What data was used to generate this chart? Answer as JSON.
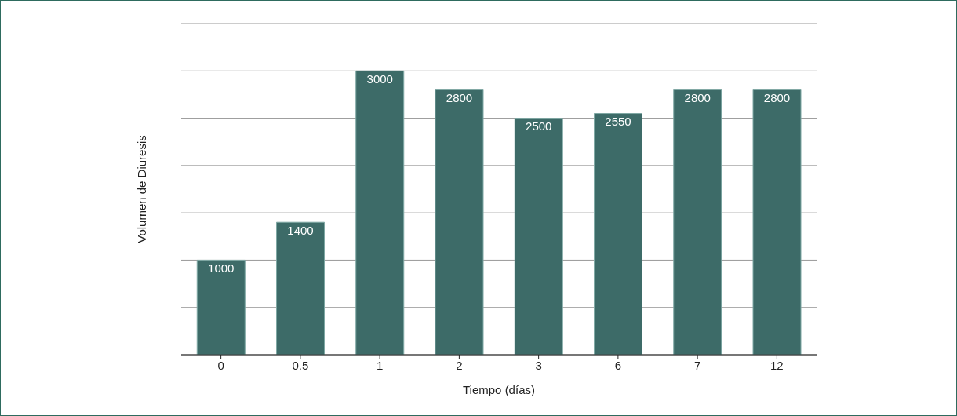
{
  "chart_data": {
    "type": "bar",
    "xlabel": "Tiempo (días)",
    "ylabel": "Volumen de Diuresis",
    "categories": [
      "0",
      "0.5",
      "1",
      "2",
      "3",
      "6",
      "7",
      "12"
    ],
    "values": [
      1000,
      1400,
      3000,
      2800,
      2500,
      2550,
      2800,
      2800
    ],
    "color": "#3d6b68",
    "ylim": [
      0,
      3500
    ],
    "tick_labels": "x",
    "grid": "y",
    "data_labels": true
  }
}
